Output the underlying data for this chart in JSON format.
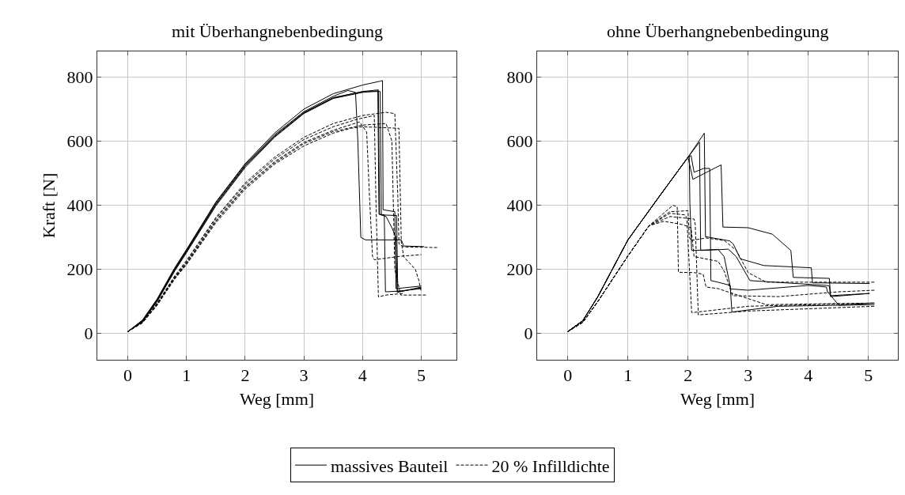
{
  "chart_data": [
    {
      "type": "line",
      "title": "mit Überhangnebenbedingung",
      "xlabel": "Weg [mm]",
      "ylabel": "Kraft [N]",
      "xlim": [
        -0.52,
        5.6
      ],
      "ylim": [
        -82,
        880
      ],
      "xticks": [
        0,
        1,
        2,
        3,
        4,
        5
      ],
      "yticks": [
        0,
        200,
        400,
        600,
        800
      ],
      "grid": true,
      "legend": "bottom",
      "marker": "none",
      "series": [
        {
          "name": "massives Bauteil",
          "color": "#000000",
          "line_style": "solid",
          "x": [
            0,
            0.25,
            0.5,
            0.8,
            1.0,
            1.5,
            2.0,
            2.5,
            3.0,
            3.5,
            4.0,
            4.3,
            4.34,
            4.35,
            4.55,
            4.57,
            5.0
          ],
          "values": [
            6,
            42,
            108,
            205,
            262,
            410,
            530,
            625,
            700,
            748,
            775,
            787,
            789,
            386,
            380,
            140,
            148
          ]
        },
        {
          "color": "#000000",
          "line_style": "solid",
          "x": [
            0,
            0.25,
            0.5,
            0.8,
            1.0,
            1.5,
            2.0,
            2.5,
            3.0,
            3.5,
            4.0,
            4.27,
            4.29,
            4.37,
            4.39,
            4.6,
            5.0
          ],
          "values": [
            6,
            38,
            102,
            198,
            255,
            402,
            522,
            615,
            688,
            735,
            755,
            760,
            372,
            370,
            130,
            132,
            140
          ]
        },
        {
          "color": "#000000",
          "line_style": "solid",
          "x": [
            0,
            0.25,
            0.5,
            0.8,
            1.0,
            1.5,
            2.0,
            2.5,
            3.0,
            3.5,
            4.0,
            4.26,
            4.28,
            4.4,
            4.5,
            4.57,
            4.59,
            5.0
          ],
          "values": [
            6,
            36,
            100,
            195,
            252,
            398,
            518,
            612,
            686,
            733,
            752,
            757,
            372,
            365,
            330,
            300,
            128,
            145
          ]
        },
        {
          "color": "#000000",
          "line_style": "solid",
          "x": [
            0,
            0.25,
            0.5,
            0.8,
            1.0,
            1.5,
            2.0,
            2.5,
            3.0,
            3.5,
            3.75,
            3.88,
            3.92,
            3.97,
            4.05,
            4.66,
            4.7,
            5.05
          ],
          "values": [
            6,
            40,
            106,
            203,
            260,
            408,
            527,
            620,
            692,
            740,
            758,
            752,
            600,
            300,
            292,
            292,
            273,
            271
          ]
        },
        {
          "color": "#000000",
          "line_style": "solid",
          "x": [
            0,
            0.25,
            0.5,
            0.8,
            1.0,
            1.5,
            2.0,
            2.5,
            3.0,
            3.5,
            4.0,
            4.3,
            4.32,
            4.58,
            4.6,
            5.0
          ],
          "values": [
            6,
            39,
            104,
            200,
            257,
            404,
            523,
            616,
            689,
            736,
            754,
            755,
            370,
            368,
            130,
            142
          ]
        },
        {
          "name": "20 % Infilldichte",
          "color": "#000000",
          "line_style": "dashed",
          "x": [
            0,
            0.25,
            0.5,
            0.8,
            1.0,
            1.5,
            2.0,
            2.5,
            3.0,
            3.5,
            4.0,
            4.4,
            4.55,
            4.6,
            4.62,
            4.7,
            5.3
          ],
          "values": [
            6,
            36,
            95,
            180,
            228,
            362,
            470,
            550,
            612,
            655,
            680,
            690,
            686,
            430,
            280,
            270,
            268
          ]
        },
        {
          "color": "#000000",
          "line_style": "dashed",
          "x": [
            0,
            0.25,
            0.5,
            0.8,
            1.0,
            1.5,
            2.0,
            2.5,
            3.0,
            3.5,
            3.9,
            4.2,
            4.23,
            4.27,
            4.4,
            4.7
          ],
          "values": [
            6,
            35,
            93,
            177,
            224,
            358,
            465,
            544,
            605,
            645,
            668,
            680,
            400,
            114,
            120,
            125
          ]
        },
        {
          "color": "#000000",
          "line_style": "dashed",
          "x": [
            0,
            0.25,
            0.5,
            0.8,
            1.0,
            1.5,
            2.0,
            2.5,
            3.0,
            3.5,
            3.95,
            4.07,
            4.12,
            4.17,
            4.2,
            4.6,
            5.0
          ],
          "values": [
            6,
            34,
            91,
            174,
            220,
            352,
            458,
            536,
            596,
            634,
            660,
            628,
            420,
            240,
            230,
            240,
            246
          ]
        },
        {
          "color": "#000000",
          "line_style": "dashed",
          "x": [
            0,
            0.25,
            0.5,
            0.8,
            1.0,
            1.5,
            2.0,
            2.5,
            3.0,
            3.5,
            3.8,
            4.0,
            4.62,
            4.66,
            4.7,
            4.9,
            4.96,
            5.0
          ],
          "values": [
            6,
            33,
            88,
            170,
            215,
            345,
            450,
            528,
            585,
            625,
            640,
            645,
            640,
            285,
            240,
            200,
            165,
            130
          ]
        },
        {
          "color": "#000000",
          "line_style": "dashed",
          "x": [
            0,
            0.25,
            0.5,
            0.8,
            1.0,
            1.5,
            2.0,
            2.5,
            3.0,
            3.5,
            4.0,
            4.4,
            4.5,
            4.55,
            4.65,
            5.1
          ],
          "values": [
            6,
            34,
            90,
            172,
            218,
            350,
            455,
            532,
            592,
            630,
            650,
            655,
            600,
            200,
            120,
            120
          ]
        }
      ]
    },
    {
      "type": "line",
      "title": "ohne Überhangnebenbedingung",
      "xlabel": "Weg [mm]",
      "xlim": [
        -0.51,
        5.49
      ],
      "ylim": [
        -82,
        880
      ],
      "xticks": [
        0,
        1,
        2,
        3,
        4,
        5
      ],
      "yticks": [
        0,
        200,
        400,
        600,
        800
      ],
      "grid": true,
      "marker": "none",
      "series": [
        {
          "color": "#000000",
          "line_style": "solid",
          "x": [
            0,
            0.25,
            0.5,
            1.0,
            1.5,
            2.0,
            2.27,
            2.29,
            2.69,
            2.75,
            2.87,
            3.26,
            4.05,
            4.07,
            5.02
          ],
          "values": [
            6,
            40,
            115,
            292,
            422,
            550,
            625,
            302,
            289,
            280,
            233,
            212,
            205,
            158,
            156
          ]
        },
        {
          "color": "#000000",
          "line_style": "solid",
          "x": [
            0,
            0.25,
            0.5,
            1.0,
            1.5,
            2.0,
            2.19,
            2.21,
            2.67,
            2.8,
            3.03,
            4.3,
            4.35,
            4.37,
            5.02
          ],
          "values": [
            6,
            40,
            115,
            292,
            422,
            550,
            597,
            259,
            263,
            240,
            165,
            150,
            148,
            118,
            125
          ]
        },
        {
          "color": "#000000",
          "line_style": "solid",
          "x": [
            0,
            0.25,
            0.5,
            1.0,
            1.5,
            2.0,
            2.02,
            2.03,
            2.06,
            2.5,
            2.6,
            2.71,
            3.0,
            4.0,
            4.3,
            4.32,
            4.51,
            5.1
          ],
          "values": [
            6,
            40,
            115,
            292,
            422,
            550,
            555,
            408,
            259,
            262,
            240,
            139,
            135,
            150,
            145,
            130,
            88,
            95
          ]
        },
        {
          "color": "#000000",
          "line_style": "solid",
          "x": [
            0,
            0.25,
            0.5,
            1.0,
            1.5,
            2.0,
            2.08,
            2.55,
            2.58,
            3.0,
            3.4,
            3.71,
            3.75,
            4.35,
            4.37,
            5.02
          ],
          "values": [
            6,
            40,
            115,
            292,
            422,
            550,
            481,
            526,
            332,
            330,
            310,
            259,
            175,
            172,
            115,
            125
          ]
        },
        {
          "color": "#000000",
          "line_style": "solid",
          "x": [
            0,
            0.25,
            0.5,
            1.0,
            1.5,
            2.0,
            2.05,
            2.1,
            2.26,
            2.36,
            2.38,
            2.5,
            2.7,
            2.73,
            3.5,
            5.1
          ],
          "values": [
            6,
            40,
            115,
            292,
            422,
            550,
            555,
            503,
            515,
            515,
            165,
            160,
            150,
            67,
            85,
            90
          ]
        },
        {
          "color": "#000000",
          "line_style": "dashed",
          "x": [
            0,
            0.25,
            0.5,
            1.0,
            1.35,
            1.75,
            1.82,
            1.84,
            2.1,
            2.25,
            2.3,
            2.5,
            3.3,
            5.1
          ],
          "values": [
            6,
            35,
            100,
            242,
            336,
            400,
            395,
            191,
            190,
            185,
            145,
            140,
            90,
            95
          ]
        },
        {
          "color": "#000000",
          "line_style": "dashed",
          "x": [
            0,
            0.25,
            0.5,
            1.0,
            1.35,
            1.7,
            2.0,
            2.02,
            2.05,
            2.3,
            2.6,
            2.8,
            3.0,
            3.3,
            5.1
          ],
          "values": [
            6,
            35,
            100,
            242,
            336,
            380,
            383,
            300,
            290,
            298,
            290,
            260,
            190,
            160,
            160
          ]
        },
        {
          "color": "#000000",
          "line_style": "dashed",
          "x": [
            0,
            0.25,
            0.5,
            1.0,
            1.35,
            1.7,
            1.95,
            1.98,
            2.06,
            2.3,
            3.0,
            5.1
          ],
          "values": [
            6,
            35,
            100,
            242,
            336,
            375,
            370,
            360,
            65,
            70,
            85,
            95
          ]
        },
        {
          "color": "#000000",
          "line_style": "dashed",
          "x": [
            0,
            0.25,
            0.5,
            1.0,
            1.35,
            1.7,
            2.1,
            2.12,
            2.17,
            3.0,
            5.1
          ],
          "values": [
            6,
            35,
            100,
            242,
            336,
            365,
            357,
            340,
            58,
            70,
            85
          ]
        },
        {
          "color": "#000000",
          "line_style": "dashed",
          "x": [
            0,
            0.25,
            0.5,
            1.0,
            1.35,
            1.6,
            1.9,
            2.05,
            2.1,
            2.5,
            2.6,
            2.74,
            3.5,
            4.5,
            5.1
          ],
          "values": [
            6,
            35,
            100,
            242,
            336,
            350,
            340,
            330,
            240,
            225,
            195,
            118,
            115,
            130,
            135
          ]
        }
      ]
    }
  ]
}
